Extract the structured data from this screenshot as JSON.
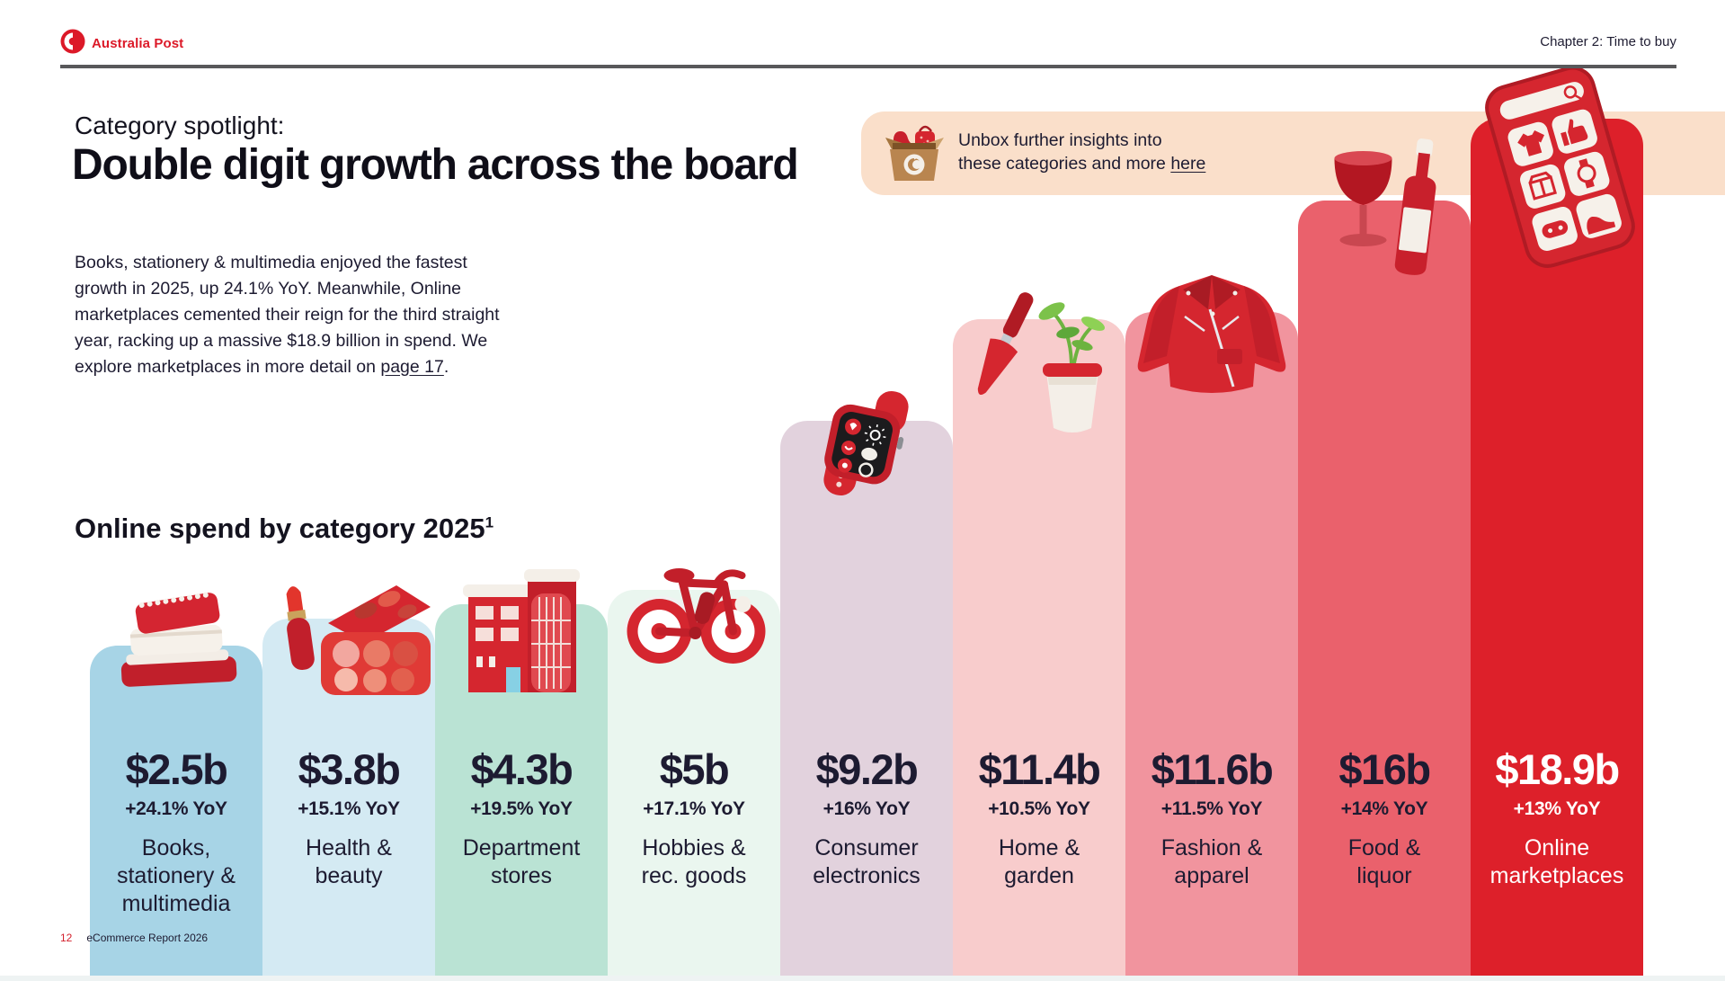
{
  "header": {
    "brand": "Australia Post",
    "brand_color": "#dc1928",
    "chapter": "Chapter 2: Time to buy"
  },
  "intro": {
    "kicker": "Category spotlight:",
    "title": "Double digit growth across the board",
    "body": "Books, stationery & multimedia enjoyed the fastest growth in 2025, up 24.1% YoY. Meanwhile, Online marketplaces cemented their reign for the third straight year, racking up a massive $18.9 billion in spend. We explore marketplaces in more detail on ",
    "body_link": "page 17",
    "body_end": "."
  },
  "callout": {
    "icon": "unboxed-parcel-icon",
    "line1": "Unbox further insights into",
    "line2": "these categories and more ",
    "link": "here",
    "bg": "#fadfca"
  },
  "chart_title": {
    "text": "Online spend by category 2025",
    "superscript": "1"
  },
  "chart_data": {
    "type": "bar",
    "title": "Online spend by category 2025",
    "unit": "billions AUD, online spend",
    "year": "2025",
    "categories": [
      "Books, stationery & multimedia",
      "Health & beauty",
      "Department stores",
      "Hobbies & rec. goods",
      "Consumer electronics",
      "Home & garden",
      "Fashion & apparel",
      "Food & liquor",
      "Online marketplaces"
    ],
    "values": [
      2.5,
      3.8,
      4.3,
      5,
      9.2,
      11.4,
      11.6,
      16,
      18.9
    ],
    "value_labels": [
      "$2.5b",
      "$3.8b",
      "$4.3b",
      "$5b",
      "$9.2b",
      "$11.4b",
      "$11.6b",
      "$16b",
      "$18.9b"
    ],
    "yoy": [
      "+24.1% YoY",
      "+15.1% YoY",
      "+19.5% YoY",
      "+17.1% YoY",
      "+16% YoY",
      "+10.5% YoY",
      "+11.5% YoY",
      "+14% YoY",
      "+13% YoY"
    ],
    "label_lines": [
      [
        "Books,",
        "stationery &",
        "multimedia"
      ],
      [
        "Health &",
        "beauty"
      ],
      [
        "Department",
        "stores"
      ],
      [
        "Hobbies &",
        "rec. goods"
      ],
      [
        "Consumer",
        "electronics"
      ],
      [
        "Home &",
        "garden"
      ],
      [
        "Fashion &",
        "apparel"
      ],
      [
        "Food &",
        "liquor"
      ],
      [
        "Online",
        "marketplaces"
      ]
    ],
    "bar_colors": [
      "#a7d4e6",
      "#d4eaf3",
      "#bae3d4",
      "#eaf6ef",
      "#e2d2dd",
      "#f8cccc",
      "#f1949e",
      "#ea616c",
      "#dd202a"
    ],
    "text_colors": [
      "#1d1b31",
      "#1d1b31",
      "#1d1b31",
      "#1d1b31",
      "#1d1b31",
      "#1d1b31",
      "#1d1b31",
      "#1d1b31",
      "#ffffff"
    ],
    "icons": [
      "books-icon",
      "cosmetics-icon",
      "department-store-icon",
      "bicycle-icon",
      "smartwatch-icon",
      "gardening-icon",
      "leather-jacket-icon",
      "wine-icon",
      "shopping-phone-icon"
    ],
    "legend_position": "none",
    "grid": false
  },
  "footer": {
    "page_number": "12",
    "report_name": "eCommerce Report 2026"
  }
}
